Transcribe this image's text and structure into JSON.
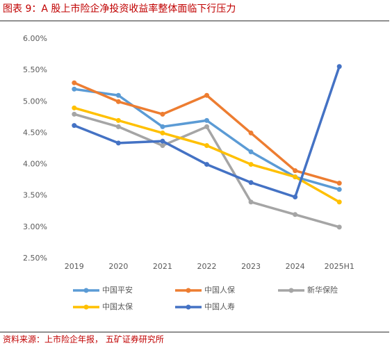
{
  "chart_data": {
    "type": "line",
    "title": "图表 9：A 股上市险企净投资收益率整体面临下行压力",
    "source": "资料来源：上市险企年报， 五矿证券研究所",
    "categories": [
      "2019",
      "2020",
      "2021",
      "2022",
      "2023",
      "2024",
      "2025H1"
    ],
    "ylim": [
      2.5,
      6
    ],
    "yticks": [
      {
        "value": 2.5,
        "label": "2.50%"
      },
      {
        "value": 3,
        "label": "3.00%"
      },
      {
        "value": 3.5,
        "label": "3.50%"
      },
      {
        "value": 4,
        "label": "4.00%"
      },
      {
        "value": 4.5,
        "label": "4.50%"
      },
      {
        "value": 5,
        "label": "5.00%"
      },
      {
        "value": 5.5,
        "label": "5.50%"
      },
      {
        "value": 6,
        "label": "6.00%"
      }
    ],
    "grid": false,
    "series": [
      {
        "name": "中国平安",
        "color": "#5B9BD5",
        "values": [
          5.2,
          5.1,
          4.6,
          4.7,
          4.2,
          3.8,
          3.6
        ]
      },
      {
        "name": "中国人保",
        "color": "#ED7D31",
        "values": [
          5.3,
          5.0,
          4.8,
          5.1,
          4.5,
          3.9,
          3.7
        ]
      },
      {
        "name": "新华保险",
        "color": "#A5A5A5",
        "values": [
          4.8,
          4.6,
          4.3,
          4.6,
          3.4,
          3.2,
          3.0
        ]
      },
      {
        "name": "中国太保",
        "color": "#FFC000",
        "values": [
          4.9,
          4.7,
          4.5,
          4.3,
          4.0,
          3.8,
          3.4
        ]
      },
      {
        "name": "中国人寿",
        "color": "#4472C4",
        "values": [
          4.62,
          4.34,
          4.37,
          4.0,
          3.71,
          3.48,
          5.56
        ]
      }
    ]
  }
}
